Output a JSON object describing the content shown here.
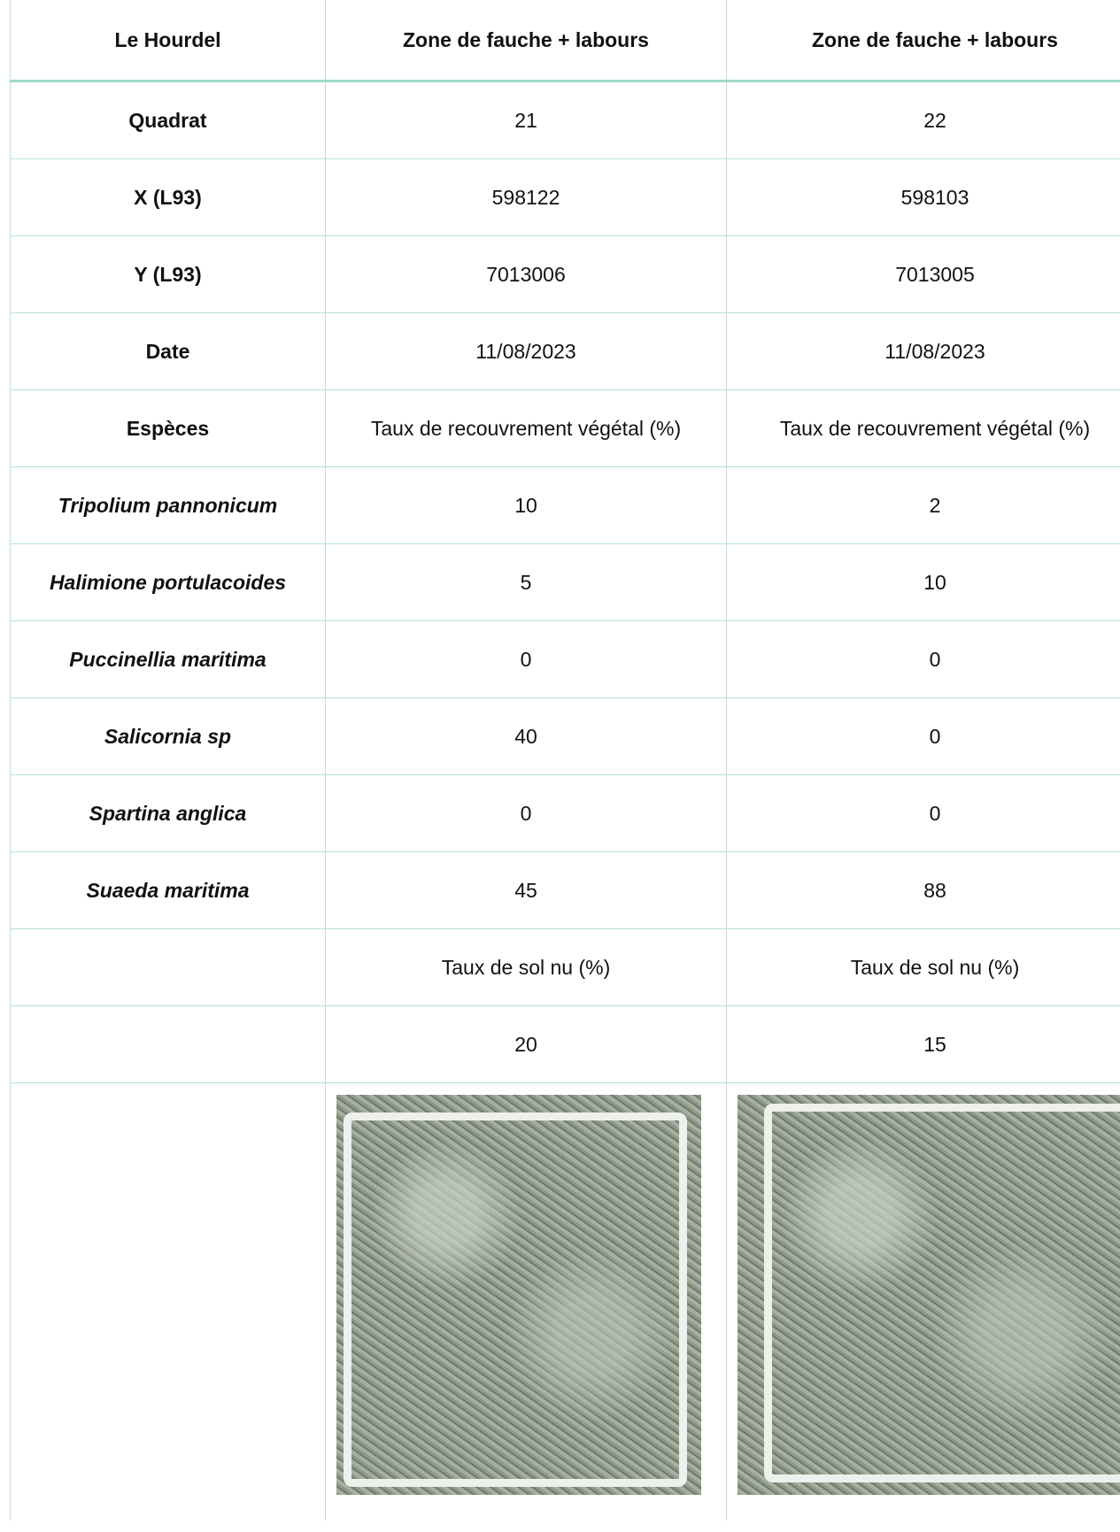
{
  "table": {
    "header": [
      "Le Hourdel",
      "Zone de fauche + labours",
      "Zone de fauche + labours"
    ],
    "rows": [
      [
        "Quadrat",
        21,
        22
      ],
      [
        "X (L93)",
        598122,
        598103
      ],
      [
        "Y (L93)",
        7013006,
        7013005
      ],
      [
        "Date",
        "11/08/2023",
        "11/08/2023"
      ],
      [
        "Espèces",
        "Taux de recouvrement végétal (%)",
        "Taux de recouvrement végétal (%)"
      ],
      [
        "Tripolium pannonicum",
        10,
        2
      ],
      [
        "Halimione portulacoides",
        5,
        10
      ],
      [
        "Puccinellia maritima",
        0,
        0
      ],
      [
        "Salicornia sp",
        40,
        0
      ],
      [
        "Spartina anglica",
        0,
        0
      ],
      [
        "Suaeda maritima",
        45,
        88
      ]
    ],
    "rows_without_label": [
      [
        "Taux de sol nu (%)",
        "Taux de sol nu (%)"
      ],
      [
        20,
        15
      ]
    ],
    "italic_rows": [
      5,
      6,
      7,
      8,
      9,
      10
    ]
  }
}
